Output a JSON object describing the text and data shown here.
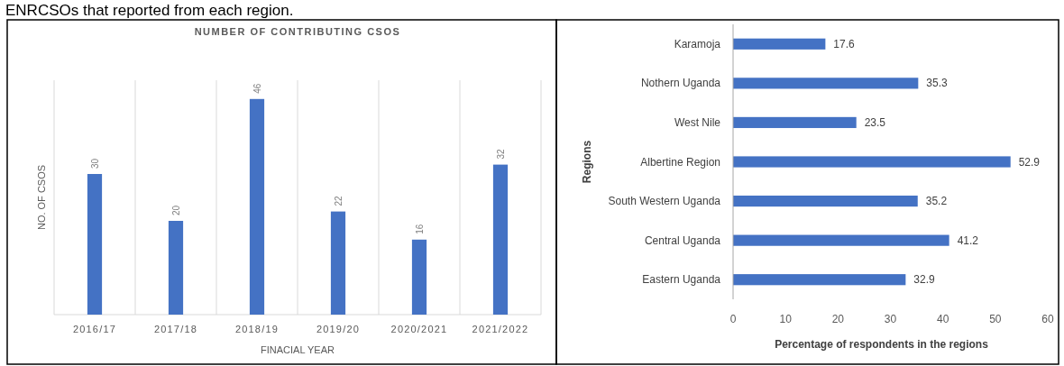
{
  "chart_data": [
    {
      "type": "bar",
      "title": "NUMBER OF CONTRIBUTING CSOS",
      "xlabel": "FINACIAL YEAR",
      "ylabel": "NO. OF CSOS",
      "annotations": [
        "ENRCSOs that reported from each region."
      ],
      "categories": [
        "2016/17",
        "2017/18",
        "2018/19",
        "2019/20",
        "2020/2021",
        "2021/2022"
      ],
      "values": [
        30,
        20,
        46,
        22,
        16,
        32
      ],
      "color": "#4472c4",
      "ylim": [
        0,
        50
      ],
      "tick_labels": "x",
      "data_labels": true,
      "grid": "x"
    },
    {
      "type": "bar",
      "orientation": "horizontal",
      "xlabel": "Percentage of respondents in the regions",
      "ylabel": "Regions",
      "categories": [
        "Karamoja",
        "Nothern Uganda",
        "West Nile",
        "Albertine Region",
        "South Western Uganda",
        "Central Uganda",
        "Eastern Uganda"
      ],
      "values": [
        17.6,
        35.3,
        23.5,
        52.9,
        35.2,
        41.2,
        32.9
      ],
      "color": "#4472c4",
      "xlim": [
        0,
        60
      ],
      "xticks": [
        0,
        10,
        20,
        30,
        40,
        50,
        60
      ],
      "data_labels": true
    }
  ]
}
